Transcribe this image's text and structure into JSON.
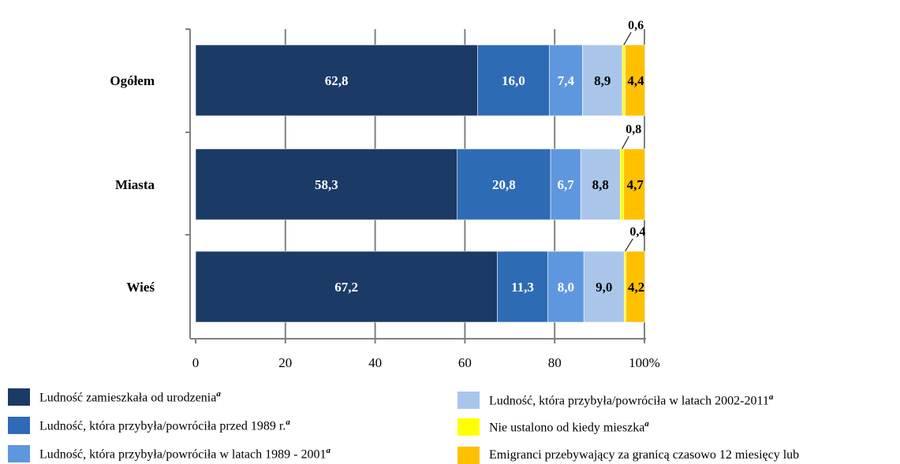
{
  "chart_data": {
    "type": "bar",
    "orientation": "horizontal",
    "stacked": true,
    "categories": [
      "Ogółem",
      "Miasta",
      "Wieś"
    ],
    "series": [
      {
        "name": "Ludność zamieszkała od urodzenia",
        "color": "#1b3a66",
        "values": [
          62.8,
          58.3,
          67.2
        ],
        "labels": [
          "62,8",
          "58,3",
          "67,2"
        ],
        "label_color": "#ffffff"
      },
      {
        "name": "Ludność, która przybyła/powróciła przed 1989 r.",
        "color": "#2e6bb5",
        "values": [
          16.0,
          20.8,
          11.3
        ],
        "labels": [
          "16,0",
          "20,8",
          "11,3"
        ],
        "label_color": "#ffffff"
      },
      {
        "name": "Ludność, która przybyła/powróciła w latach 1989 - 2001",
        "color": "#5e97de",
        "values": [
          7.4,
          6.7,
          8.0
        ],
        "labels": [
          "7,4",
          "6,7",
          "8,0"
        ],
        "label_color": "#ffffff"
      },
      {
        "name": "Ludność, która przybyła/powróciła w latach 2002-2011",
        "color": "#a9c6ea",
        "values": [
          8.9,
          8.8,
          9.0
        ],
        "labels": [
          "8,9",
          "8,8",
          "9,0"
        ],
        "label_color": "#000000"
      },
      {
        "name": "Nie ustalono od kiedy mieszka",
        "color": "#ffff00",
        "values": [
          0.6,
          0.8,
          0.4
        ],
        "labels": [
          "0,6",
          "0,8",
          "0,4"
        ],
        "label_color": "#000000"
      },
      {
        "name": "Emigranci przebywający za granicą czasowo 12 miesięcy lub",
        "color": "#ffc000",
        "values": [
          4.4,
          4.7,
          4.2
        ],
        "labels": [
          "4,4",
          "4,7",
          "4,2"
        ],
        "label_color": "#000000"
      }
    ],
    "xlim": [
      0,
      100
    ],
    "xticks": [
      "0",
      "20",
      "40",
      "60",
      "80",
      "100%"
    ],
    "xtick_values": [
      0,
      20,
      40,
      60,
      80,
      100
    ],
    "grid": "vertical",
    "legend_position": "bottom",
    "legend_superscript": "a"
  }
}
